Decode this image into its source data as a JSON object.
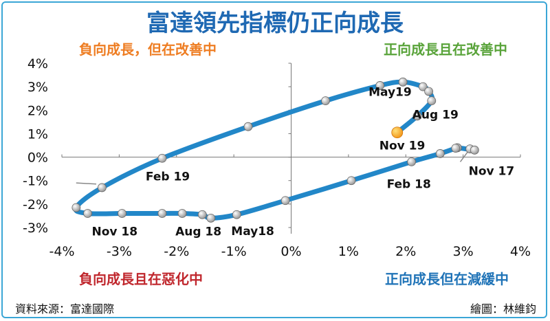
{
  "header": {
    "title": "富達領先指標仍正向成長"
  },
  "quadrants": {
    "top_left": {
      "text": "負向成長，但在改善中",
      "color": "#ee7d22"
    },
    "top_right": {
      "text": "正向成長且在改善中",
      "color": "#59a33a"
    },
    "bottom_left": {
      "text": "負向成長且在惡化中",
      "color": "#c0272d"
    },
    "bottom_right": {
      "text": "正向成長但在減緩中",
      "color": "#1f73b7"
    }
  },
  "footer": {
    "source": "資料來源：富達國際",
    "credit": "繪圖：林維鈞"
  },
  "chart_data": {
    "type": "line",
    "x_ticks": [
      "-4%",
      "-3%",
      "-2%",
      "-1%",
      "0%",
      "1%",
      "2%",
      "3%",
      "4%"
    ],
    "y_ticks": [
      "4%",
      "3%",
      "2%",
      "1%",
      "0%",
      "-1%",
      "-2%",
      "-3%"
    ],
    "xlim": [
      -4,
      4
    ],
    "ylim": [
      -3,
      4
    ],
    "line_color": "#2287c8",
    "marker_color": "#9a9a9a",
    "current_color": "#f39a1e",
    "lead_in": [
      [
        2.95,
        -0.2
      ],
      [
        3.12,
        0.35
      ]
    ],
    "tail": [
      [
        -3.4,
        -1.15
      ],
      [
        -3.75,
        -1.1
      ]
    ],
    "series": [
      {
        "x": [
          3.12,
          3.2
        ],
        "y": [
          0.35,
          0.3
        ],
        "label": "Nov 17"
      },
      {
        "x": [
          2.9,
          2.87
        ],
        "y": [
          0.4,
          0.38
        ]
      },
      {
        "x": [
          2.6
        ],
        "y": [
          0.15
        ]
      },
      {
        "x": [
          2.1
        ],
        "y": [
          -0.2
        ],
        "label": "Feb 18"
      },
      {
        "x": [
          1.05
        ],
        "y": [
          -1.0
        ]
      },
      {
        "x": [
          -0.1
        ],
        "y": [
          -1.85
        ]
      },
      {
        "x": [
          -0.95
        ],
        "y": [
          -2.45
        ],
        "label": "May18"
      },
      {
        "x": [
          -1.4
        ],
        "y": [
          -2.6
        ]
      },
      {
        "x": [
          -1.55
        ],
        "y": [
          -2.45
        ]
      },
      {
        "x": [
          -1.9
        ],
        "y": [
          -2.4
        ],
        "label": "Aug 18"
      },
      {
        "x": [
          -2.25
        ],
        "y": [
          -2.4
        ]
      },
      {
        "x": [
          -2.95
        ],
        "y": [
          -2.4
        ]
      },
      {
        "x": [
          -3.55
        ],
        "y": [
          -2.4
        ],
        "label": "Nov 18"
      },
      {
        "x": [
          -3.75
        ],
        "y": [
          -2.15
        ]
      },
      {
        "x": [
          -3.3
        ],
        "y": [
          -1.3
        ]
      },
      {
        "x": [
          -2.25
        ],
        "y": [
          -0.05
        ],
        "label": "Feb 19"
      },
      {
        "x": [
          -0.75
        ],
        "y": [
          1.3
        ]
      },
      {
        "x": [
          0.6
        ],
        "y": [
          2.4
        ]
      },
      {
        "x": [
          1.55
        ],
        "y": [
          3.05
        ]
      },
      {
        "x": [
          1.95
        ],
        "y": [
          3.2
        ],
        "label": "May19"
      },
      {
        "x": [
          2.3
        ],
        "y": [
          3.0
        ]
      },
      {
        "x": [
          2.4
        ],
        "y": [
          2.8
        ]
      },
      {
        "x": [
          2.45
        ],
        "y": [
          2.4
        ],
        "label": "Aug 19"
      },
      {
        "x": [
          2.2
        ],
        "y": [
          1.75
        ]
      },
      {
        "x": [
          1.85
        ],
        "y": [
          1.05
        ],
        "label": "Nov 19"
      }
    ]
  }
}
